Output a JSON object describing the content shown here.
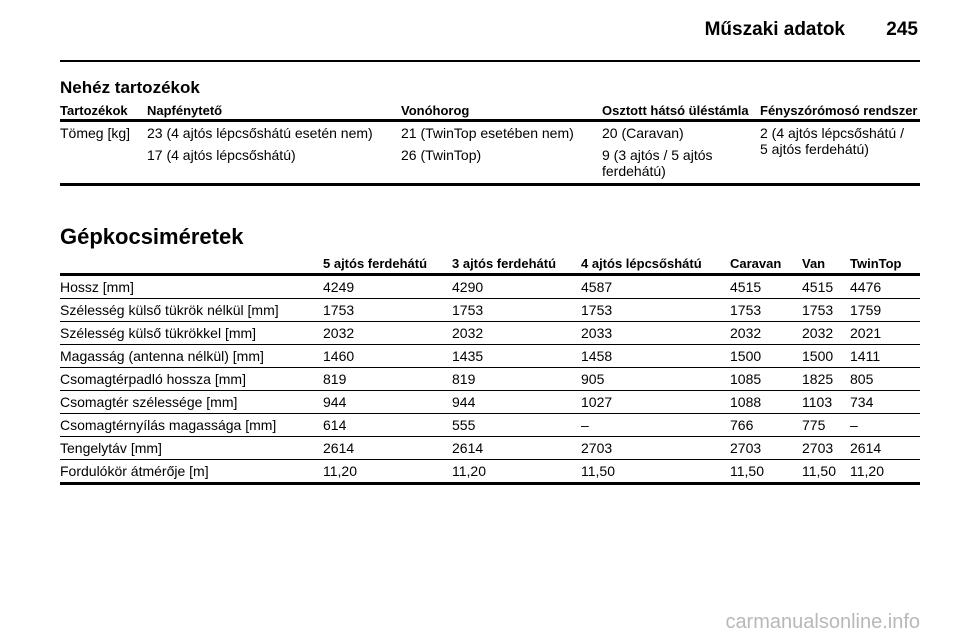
{
  "header": {
    "title": "Műszaki adatok",
    "page_number": "245"
  },
  "accessories": {
    "title": "Nehéz tartozékok",
    "columns": [
      "Tartozékok",
      "Napfénytető",
      "Vonóhorog",
      "Osztott hátsó üléstámla",
      "Fényszórómosó rendszer"
    ],
    "row": {
      "label": "Tömeg [kg]",
      "sunroof": [
        "23 (4 ajtós lépcsőshátú esetén nem)",
        "17 (4 ajtós lépcsőshátú)"
      ],
      "towbar": [
        "21 (TwinTop esetében nem)",
        "26 (TwinTop)"
      ],
      "split_seat": [
        "20 (Caravan)",
        "9 (3 ajtós / 5 ajtós ferdehátú)"
      ],
      "headlamp_washer": [
        "2 (4 ajtós lépcsőshátú / 5 ajtós ferdehátú)"
      ]
    }
  },
  "dimensions": {
    "title": "Gépkocsiméretek",
    "columns": [
      "",
      "5 ajtós ferdehátú",
      "3 ajtós ferdehátú",
      "4 ajtós lépcsőshátú",
      "Caravan",
      "Van",
      "TwinTop"
    ],
    "rows": [
      [
        "Hossz [mm]",
        "4249",
        "4290",
        "4587",
        "4515",
        "4515",
        "4476"
      ],
      [
        "Szélesség külső tükrök nélkül [mm]",
        "1753",
        "1753",
        "1753",
        "1753",
        "1753",
        "1759"
      ],
      [
        "Szélesség külső tükrökkel [mm]",
        "2032",
        "2032",
        "2033",
        "2032",
        "2032",
        "2021"
      ],
      [
        "Magasság (antenna nélkül) [mm]",
        "1460",
        "1435",
        "1458",
        "1500",
        "1500",
        "1411"
      ],
      [
        "Csomagtérpadló hossza [mm]",
        "819",
        "819",
        "905",
        "1085",
        "1825",
        "805"
      ],
      [
        "Csomagtér szélessége [mm]",
        "944",
        "944",
        "1027",
        "1088",
        "1103",
        "734"
      ],
      [
        "Csomagtérnyílás magassága [mm]",
        "614",
        "555",
        "–",
        "766",
        "775",
        "–"
      ],
      [
        "Tengelytáv [mm]",
        "2614",
        "2614",
        "2703",
        "2703",
        "2703",
        "2614"
      ],
      [
        "Fordulókör átmérője [m]",
        "11,20",
        "11,20",
        "11,50",
        "11,50",
        "11,50",
        "11,20"
      ]
    ]
  },
  "watermark": "carmanualsonline.info"
}
